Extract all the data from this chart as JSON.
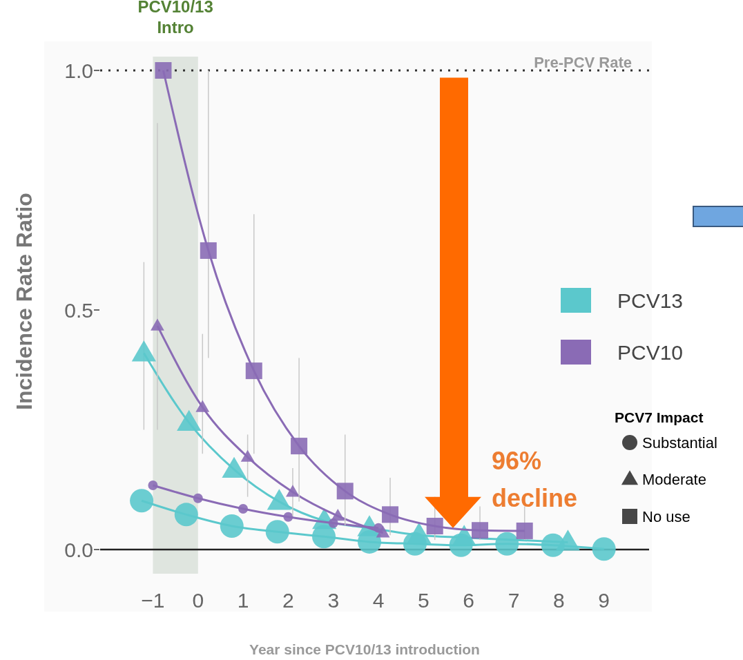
{
  "chart_data": {
    "type": "line",
    "xlabel": "Year since PCV10/13 introduction",
    "ylabel": "Incidence Rate Ratio",
    "legend_title": "PCV7 Impact",
    "legend": "right",
    "grid": false,
    "line_style": "solid",
    "xlim": [
      -2.17,
      10.0
    ],
    "ylim": [
      0,
      1
    ],
    "xticks": [
      {
        "value": -1,
        "label": "−1"
      },
      0,
      1,
      2,
      3,
      4,
      5,
      6,
      7,
      8,
      9
    ],
    "yticks": [
      {
        "value": 0,
        "label": "0.0"
      },
      {
        "value": 0.5,
        "label": "0.5"
      },
      {
        "value": 1,
        "label": "1.0"
      }
    ],
    "ref_lines": [
      {
        "axis": "y",
        "value": 1,
        "label": "Pre-PCV Rate",
        "line_style": "dotted",
        "color": "#333333"
      }
    ],
    "bands": [
      {
        "axis": "x",
        "from": -1,
        "to": 0,
        "label": "PCV10/13 Intro",
        "color": "#dfe5df"
      }
    ],
    "annotations": [
      "96% decline",
      "Substantial",
      "Moderate",
      "No use"
    ],
    "series": [
      {
        "name": "PCV13",
        "color": "#5bc8cc",
        "marker": "circle",
        "x": [
          -1.25,
          -0.26,
          0.75,
          1.76,
          2.79,
          3.8,
          4.81,
          5.83,
          6.85,
          7.87,
          9.0
        ],
        "values": [
          0.102,
          0.073,
          0.049,
          0.037,
          0.027,
          0.016,
          0.012,
          0.009,
          0.012,
          0.009,
          0.001
        ]
      },
      {
        "color": "#5bc8cc",
        "marker": "triangle",
        "x": [
          -1.2,
          -0.2,
          0.8,
          1.8,
          2.8,
          3.8,
          4.9,
          5.9,
          8.2
        ],
        "values": [
          0.41,
          0.265,
          0.167,
          0.1,
          0.06,
          0.045,
          0.03,
          0.025,
          0.015
        ],
        "errors": [
          [
            0.25,
            0.6
          ],
          null,
          null,
          null,
          null,
          null,
          null,
          null,
          null
        ]
      },
      {
        "color": "#8a6bb5",
        "marker": "circle",
        "x": [
          -1.0,
          0,
          1,
          2,
          3,
          4
        ],
        "values": [
          0.134,
          0.107,
          0.085,
          0.068,
          0.055,
          0.045
        ]
      },
      {
        "color": "#8a6bb5",
        "marker": "triangle",
        "x": [
          -0.9,
          0.1,
          1.1,
          2.1,
          3.1,
          4.1
        ],
        "values": [
          0.467,
          0.297,
          0.193,
          0.12,
          0.07,
          0.035
        ],
        "errors": [
          [
            0.25,
            0.89
          ],
          [
            0.2,
            0.45
          ],
          [
            0.11,
            0.24
          ],
          [
            0.07,
            0.17
          ],
          null,
          null
        ]
      },
      {
        "name": "PCV10",
        "color": "#8a6bb5",
        "marker": "square",
        "x": [
          -0.77,
          0.23,
          1.24,
          2.24,
          3.26,
          4.26,
          5.25,
          6.25,
          7.24
        ],
        "values": [
          1.0,
          0.624,
          0.373,
          0.216,
          0.122,
          0.073,
          0.049,
          0.04,
          0.039
        ],
        "errors": [
          null,
          [
            0.4,
            1.0
          ],
          [
            0.2,
            0.7
          ],
          [
            0.1,
            0.4
          ],
          [
            0.05,
            0.24
          ],
          [
            0.03,
            0.15
          ],
          [
            0.02,
            0.11
          ],
          [
            0.02,
            0.09
          ],
          [
            0.02,
            0.09
          ]
        ]
      }
    ]
  }
}
